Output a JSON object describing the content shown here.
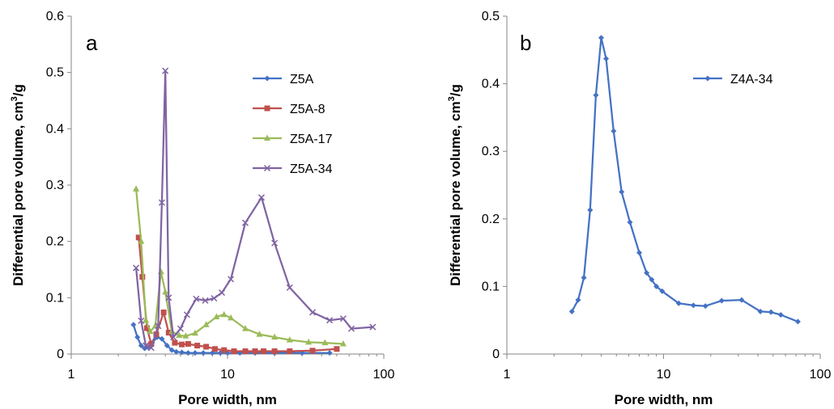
{
  "chart_data": [
    {
      "type": "line",
      "panel_label": "a",
      "xlabel": "Pore width, nm",
      "ylabel_main": "Differential pore volume, cm",
      "ylabel_sup": "3",
      "ylabel_tail": "/g",
      "xscale": "log",
      "xlim": [
        1,
        100
      ],
      "ylim": [
        0,
        0.6
      ],
      "xticks": [
        1,
        10,
        100
      ],
      "xtick_labels": [
        "1",
        "10",
        "100"
      ],
      "yticks": [
        0,
        0.1,
        0.2,
        0.3,
        0.4,
        0.5,
        0.6
      ],
      "ytick_labels": [
        "0",
        "0.1",
        "0.2",
        "0.3",
        "0.4",
        "0.5",
        "0.6"
      ],
      "grid": false,
      "legend_position": "top-right",
      "series": [
        {
          "name": "Z5A",
          "color": "#4472C4",
          "marker": "diamond",
          "x": [
            2.5,
            2.65,
            2.8,
            2.95,
            3.1,
            3.3,
            3.55,
            3.8,
            4.1,
            4.4,
            4.7,
            5.1,
            5.6,
            6.2,
            7,
            8,
            9,
            10,
            12,
            15,
            20,
            30,
            45
          ],
          "y": [
            0.052,
            0.03,
            0.015,
            0.01,
            0.012,
            0.02,
            0.03,
            0.027,
            0.015,
            0.007,
            0.004,
            0.003,
            0.002,
            0.002,
            0.002,
            0.002,
            0.002,
            0.002,
            0.002,
            0.002,
            0.002,
            0.002,
            0.002
          ]
        },
        {
          "name": "Z5A-8",
          "color": "#C0504D",
          "marker": "square",
          "x": [
            2.7,
            2.85,
            3.05,
            3.25,
            3.5,
            3.9,
            4.2,
            4.6,
            5.1,
            5.6,
            6.4,
            7.3,
            8.3,
            9.5,
            11,
            13,
            15,
            17,
            20,
            25,
            35,
            50
          ],
          "y": [
            0.207,
            0.137,
            0.046,
            0.018,
            0.035,
            0.074,
            0.038,
            0.02,
            0.017,
            0.018,
            0.015,
            0.013,
            0.009,
            0.007,
            0.005,
            0.005,
            0.005,
            0.005,
            0.005,
            0.005,
            0.006,
            0.009
          ]
        },
        {
          "name": "Z5A-17",
          "color": "#9BBB59",
          "marker": "triangle",
          "x": [
            2.6,
            2.8,
            3.0,
            3.2,
            3.45,
            3.75,
            4.0,
            4.4,
            4.9,
            5.4,
            6.2,
            7.3,
            8.5,
            9.5,
            10.5,
            13,
            16,
            20,
            25,
            33,
            42,
            55
          ],
          "y": [
            0.293,
            0.2,
            0.06,
            0.04,
            0.05,
            0.146,
            0.11,
            0.04,
            0.033,
            0.032,
            0.037,
            0.052,
            0.066,
            0.07,
            0.064,
            0.045,
            0.035,
            0.03,
            0.025,
            0.021,
            0.02,
            0.018
          ]
        },
        {
          "name": "Z5A-34",
          "color": "#8064A2",
          "marker": "x",
          "x": [
            2.6,
            2.8,
            3.0,
            3.25,
            3.6,
            3.8,
            4.0,
            4.2,
            4.5,
            5.0,
            5.5,
            6.3,
            7.2,
            8.2,
            9.2,
            10.5,
            13,
            16.5,
            20,
            25,
            35,
            45,
            55,
            62,
            85
          ],
          "y": [
            0.153,
            0.059,
            0.015,
            0.011,
            0.05,
            0.269,
            0.503,
            0.1,
            0.03,
            0.045,
            0.07,
            0.098,
            0.095,
            0.099,
            0.109,
            0.133,
            0.233,
            0.278,
            0.197,
            0.118,
            0.074,
            0.06,
            0.063,
            0.045,
            0.048
          ]
        }
      ]
    },
    {
      "type": "line",
      "panel_label": "b",
      "xlabel": "Pore width, nm",
      "ylabel_main": "Differential pore volume, cm",
      "ylabel_sup": "3",
      "ylabel_tail": "/g",
      "xscale": "log",
      "xlim": [
        1,
        100
      ],
      "ylim": [
        0,
        0.5
      ],
      "xticks": [
        1,
        10,
        100
      ],
      "xtick_labels": [
        "1",
        "10",
        "100"
      ],
      "yticks": [
        0,
        0.1,
        0.2,
        0.3,
        0.4,
        0.5
      ],
      "ytick_labels": [
        "0",
        "0.1",
        "0.2",
        "0.3",
        "0.4",
        "0.5"
      ],
      "grid": false,
      "legend_position": "top-right",
      "series": [
        {
          "name": "Z4A-34",
          "color": "#4472C4",
          "marker": "diamond",
          "x": [
            2.6,
            2.85,
            3.1,
            3.4,
            3.7,
            4.0,
            4.3,
            4.8,
            5.4,
            6.1,
            7.0,
            7.8,
            8.4,
            9.0,
            9.8,
            12.5,
            15.5,
            18.5,
            23.5,
            31.5,
            41.5,
            48.5,
            56,
            72
          ],
          "y": [
            0.063,
            0.08,
            0.113,
            0.213,
            0.383,
            0.468,
            0.437,
            0.33,
            0.24,
            0.195,
            0.15,
            0.12,
            0.11,
            0.1,
            0.093,
            0.075,
            0.072,
            0.071,
            0.079,
            0.08,
            0.063,
            0.062,
            0.058,
            0.048
          ]
        }
      ]
    }
  ]
}
